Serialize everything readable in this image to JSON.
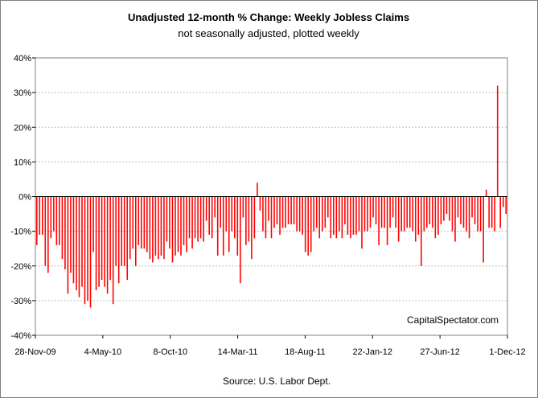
{
  "chart_data": {
    "type": "bar",
    "title": "Unadjusted 12-month %  Change: Weekly Jobless Claims",
    "subtitle": "not seasonally adjusted, plotted weekly",
    "source": "Source: U.S. Labor Dept.",
    "watermark": "CapitalSpectator.com",
    "xlabel": "",
    "ylabel": "",
    "ylim": [
      -40,
      40
    ],
    "yticks": [
      40,
      30,
      20,
      10,
      0,
      -10,
      -20,
      -30,
      -40
    ],
    "ytick_labels": [
      "40%",
      "30%",
      "20%",
      "10%",
      "0%",
      "-10%",
      "-20%",
      "-30%",
      "-40%"
    ],
    "x_tick_labels": [
      "28-Nov-09",
      "4-May-10",
      "8-Oct-10",
      "14-Mar-11",
      "18-Aug-11",
      "22-Jan-12",
      "27-Jun-12",
      "1-Dec-12"
    ],
    "bar_color": "#ff0000",
    "grid": true,
    "values": [
      -14,
      -11,
      -11,
      -20,
      -22,
      -12,
      -10,
      -14,
      -14,
      -18,
      -21,
      -28,
      -22,
      -25,
      -27,
      -29,
      -26,
      -31,
      -30,
      -32,
      -16,
      -27,
      -26,
      -24,
      -26,
      -28,
      -24,
      -31,
      -20,
      -25,
      -20,
      -20,
      -24,
      -18,
      -15,
      -20,
      -14,
      -15,
      -15,
      -16,
      -18,
      -19,
      -17,
      -18,
      -17,
      -18,
      -13,
      -15,
      -19,
      -17,
      -16,
      -17,
      -14,
      -16,
      -12,
      -15,
      -12,
      -13,
      -12,
      -13,
      -7,
      -11,
      -12,
      -6,
      -17,
      -9,
      -17,
      -10,
      -16,
      -10,
      -12,
      -17,
      -25,
      -6,
      -14,
      -13,
      -18,
      -12,
      4,
      -4,
      -10,
      -12,
      -7,
      -12,
      -9,
      -8,
      -11,
      -9,
      -9,
      -8,
      -8,
      -8,
      -10,
      -10,
      -11,
      -16,
      -17,
      -16,
      -10,
      -9,
      -12,
      -10,
      -9,
      -6,
      -12,
      -11,
      -12,
      -10,
      -12,
      -8,
      -11,
      -12,
      -11,
      -11,
      -10,
      -15,
      -10,
      -10,
      -9,
      -6,
      -8,
      -14,
      -9,
      -9,
      -14,
      -9,
      -6,
      -9,
      -13,
      -10,
      -10,
      -9,
      -9,
      -10,
      -13,
      -11,
      -20,
      -10,
      -9,
      -8,
      -9,
      -12,
      -11,
      -8,
      -7,
      -5,
      -7,
      -10,
      -13,
      -6,
      -8,
      -9,
      -10,
      -12,
      -6,
      -8,
      -10,
      -10,
      -19,
      2,
      -9,
      -9,
      -10,
      32,
      -9,
      -3,
      -5
    ]
  }
}
